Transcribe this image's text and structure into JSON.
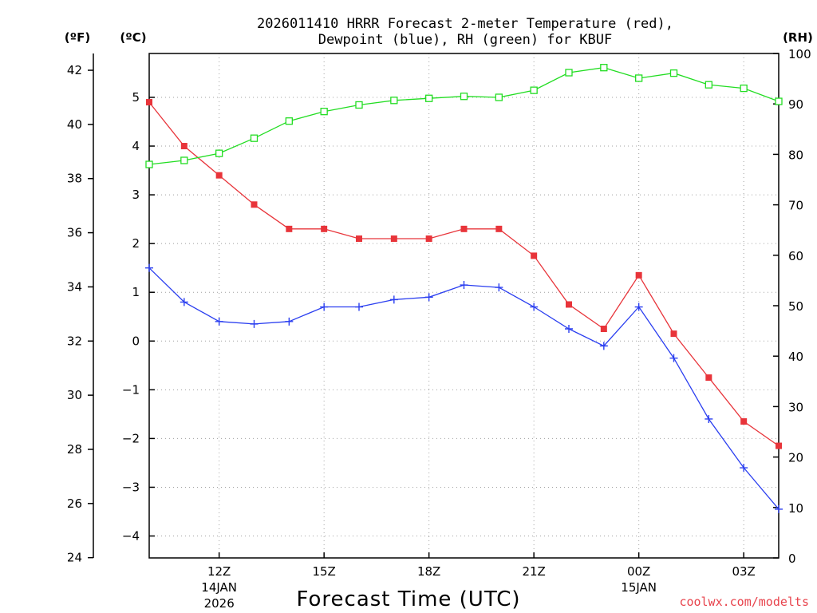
{
  "chart_data": {
    "type": "line",
    "title_line1": "2026011410 HRRR Forecast 2-meter Temperature (red),",
    "title_line2": "Dewpoint (blue), RH (green) for KBUF",
    "xlabel": "Forecast Time (UTC)",
    "credit": "coolwx.com/modelts",
    "axes": {
      "fahrenheit": {
        "unit_label": "(ºF)",
        "ticks": [
          "24",
          "26",
          "28",
          "30",
          "32",
          "34",
          "36",
          "38",
          "40",
          "42"
        ]
      },
      "celsius": {
        "unit_label": "(ºC)",
        "ticks": [
          "−4",
          "−3",
          "−2",
          "−1",
          "0",
          "1",
          "2",
          "3",
          "4",
          "5"
        ],
        "ylim": [
          -4.45,
          5.9
        ]
      },
      "rh": {
        "unit_label": "(RH)",
        "ticks": [
          "0",
          "10",
          "20",
          "30",
          "40",
          "50",
          "60",
          "70",
          "80",
          "90",
          "100"
        ],
        "ylim": [
          0,
          100
        ]
      }
    },
    "x_hours": [
      10,
      11,
      12,
      13,
      14,
      15,
      16,
      17,
      18,
      19,
      20,
      21,
      22,
      23,
      24,
      25,
      26,
      27,
      28
    ],
    "x_ticks": [
      {
        "hour": 12,
        "label": "12Z",
        "sub1": "14JAN",
        "sub2": "2026"
      },
      {
        "hour": 15,
        "label": "15Z",
        "sub1": "",
        "sub2": ""
      },
      {
        "hour": 18,
        "label": "18Z",
        "sub1": "",
        "sub2": ""
      },
      {
        "hour": 21,
        "label": "21Z",
        "sub1": "",
        "sub2": ""
      },
      {
        "hour": 24,
        "label": "00Z",
        "sub1": "15JAN",
        "sub2": ""
      },
      {
        "hour": 27,
        "label": "03Z",
        "sub1": "",
        "sub2": ""
      }
    ],
    "series": [
      {
        "name": "2-meter Temperature (°C)",
        "color": "#e8343a",
        "marker": "filled-square",
        "axis": "celsius",
        "values": [
          4.9,
          4.0,
          3.4,
          2.8,
          2.3,
          2.3,
          2.1,
          2.1,
          2.1,
          2.3,
          2.3,
          1.75,
          0.75,
          0.25,
          1.35,
          0.15,
          -0.75,
          -1.65,
          -2.15
        ]
      },
      {
        "name": "Dewpoint (°C)",
        "color": "#2a3ef0",
        "marker": "plus",
        "axis": "celsius",
        "values": [
          1.5,
          0.8,
          0.4,
          0.35,
          0.4,
          0.7,
          0.7,
          0.85,
          0.9,
          1.15,
          1.1,
          0.7,
          0.25,
          -0.1,
          0.7,
          -0.35,
          -1.6,
          -2.6,
          -3.45
        ]
      },
      {
        "name": "RH (%)",
        "color": "#22dd22",
        "marker": "open-square",
        "axis": "rh",
        "values": [
          78,
          78.8,
          80.2,
          83.2,
          86.6,
          88.5,
          89.8,
          90.7,
          91.1,
          91.5,
          91.3,
          92.7,
          96.2,
          97.2,
          95.1,
          96.1,
          93.8,
          93.1,
          90.5
        ]
      }
    ]
  }
}
